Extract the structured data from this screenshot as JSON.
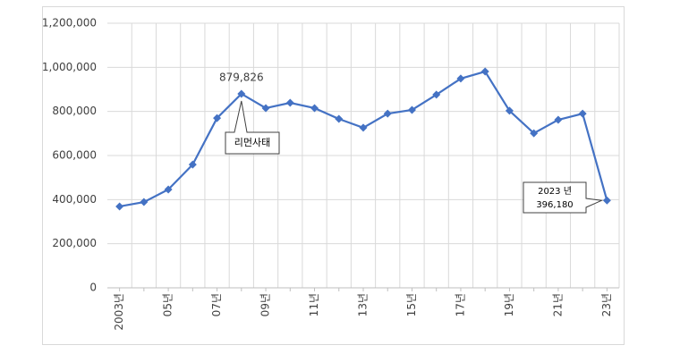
{
  "chart_data": {
    "type": "line",
    "categories": [
      "2003년",
      null,
      "05년",
      null,
      "07년",
      null,
      "09년",
      null,
      "11년",
      null,
      "13년",
      null,
      "15년",
      null,
      "17년",
      null,
      "19년",
      null,
      "21년",
      null,
      "23년"
    ],
    "series": [
      {
        "color": "#4472c4",
        "values": [
          369000,
          389000,
          446000,
          559000,
          770000,
          879826,
          815000,
          839000,
          815000,
          766000,
          726000,
          790000,
          807000,
          876000,
          949000,
          981000,
          803000,
          701000,
          762000,
          790000,
          396180
        ],
        "value_labels": [
          null,
          null,
          null,
          null,
          null,
          "879,826",
          null,
          null,
          null,
          null,
          null,
          null,
          null,
          null,
          null,
          null,
          null,
          null,
          null,
          null,
          "396,180"
        ]
      }
    ],
    "ylim": [
      0,
      1200000
    ],
    "yticks": [
      0,
      {
        "value": 200000,
        "label": "200,000"
      },
      {
        "value": 400000,
        "label": "400,000"
      },
      {
        "value": 600000,
        "label": "600,000"
      },
      {
        "value": 800000,
        "label": "800,000"
      },
      {
        "value": 1000000,
        "label": "1,000,000"
      },
      {
        "value": 1200000,
        "label": "1,200,000"
      }
    ],
    "grid": true,
    "annotations": [
      "리먼사태",
      "2023 년"
    ]
  }
}
